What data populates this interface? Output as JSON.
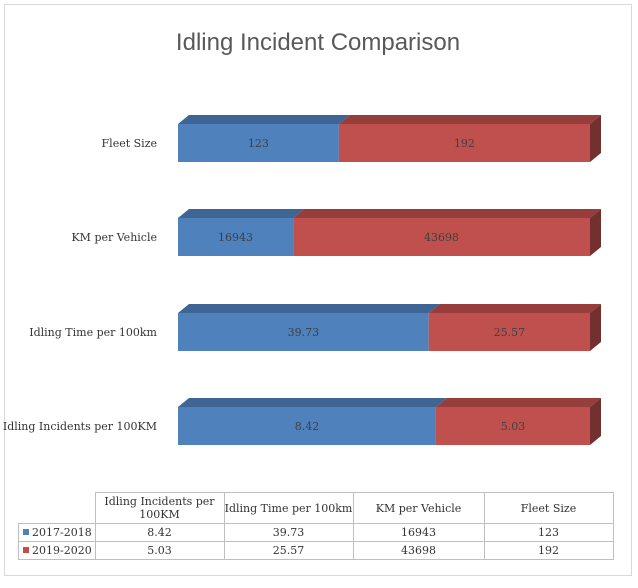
{
  "chart_data": {
    "type": "bar",
    "orientation": "horizontal",
    "stacked": true,
    "style": "3d",
    "title": "Idling Incident Comparison",
    "categories": [
      "Fleet Size",
      "KM per Vehicle",
      "Idling Time per 100km",
      "Idling Incidents per 100KM"
    ],
    "series": [
      {
        "name": "2017-2018",
        "values": [
          123,
          16943,
          39.73,
          8.42
        ],
        "labels": [
          "123",
          "16943",
          "39.73",
          "8.42"
        ],
        "color": "#4f81bd"
      },
      {
        "name": "2019-2020",
        "values": [
          192,
          43698,
          25.57,
          5.03
        ],
        "labels": [
          "192",
          "43698",
          "25.57",
          "5.03"
        ],
        "color": "#c0504d"
      }
    ],
    "normalized_to_100_percent": true,
    "grid": false,
    "legend": "data-table"
  },
  "table": {
    "columns": [
      "Idling Incidents per 100KM",
      "Idling Time per 100km",
      "KM per Vehicle",
      "Fleet Size"
    ],
    "rows": [
      {
        "name": "2017-2018",
        "cells": [
          "8.42",
          "39.73",
          "16943",
          "123"
        ]
      },
      {
        "name": "2019-2020",
        "cells": [
          "5.03",
          "25.57",
          "43698",
          "192"
        ]
      }
    ]
  }
}
